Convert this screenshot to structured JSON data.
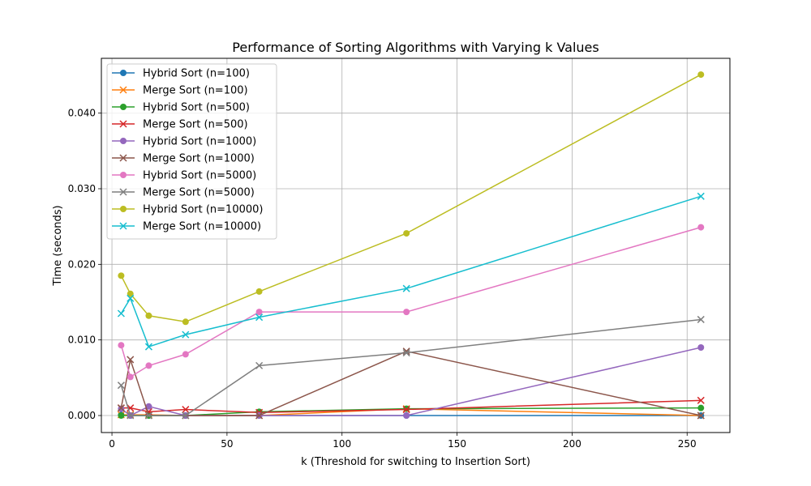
{
  "chart_data": {
    "type": "line",
    "title": "Performance of Sorting Algorithms with Varying k Values",
    "xlabel": "k (Threshold for switching to Insertion Sort)",
    "ylabel": "Time (seconds)",
    "x": [
      4,
      8,
      16,
      32,
      64,
      128,
      256
    ],
    "xlim": [
      -4.6,
      268.6
    ],
    "ylim": [
      -0.00225,
      0.04725
    ],
    "xticks": [
      0,
      50,
      100,
      150,
      200,
      250
    ],
    "yticks": [
      0.0,
      0.01,
      0.02,
      0.03,
      0.04
    ],
    "ytick_labels": [
      "0.000",
      "0.010",
      "0.020",
      "0.030",
      "0.040"
    ],
    "grid": true,
    "legend_position": "upper-left",
    "series": [
      {
        "name": "Hybrid Sort (n=100)",
        "color": "#1f77b4",
        "marker": "circle",
        "values": [
          0.0001,
          0.0,
          0.0,
          0.0,
          0.0,
          0.0,
          0.0
        ]
      },
      {
        "name": "Merge Sort (n=100)",
        "color": "#ff7f0e",
        "marker": "x",
        "values": [
          0.0001,
          0.0001,
          0.0001,
          0.0,
          0.0,
          0.0009,
          0.0
        ]
      },
      {
        "name": "Hybrid Sort (n=500)",
        "color": "#2ca02c",
        "marker": "circle",
        "values": [
          0.0,
          0.0,
          0.0,
          0.0,
          0.0005,
          0.0009,
          0.001
        ]
      },
      {
        "name": "Merge Sort (n=500)",
        "color": "#d62728",
        "marker": "x",
        "values": [
          0.001,
          0.001,
          0.0005,
          0.0008,
          0.0004,
          0.0008,
          0.002
        ]
      },
      {
        "name": "Hybrid Sort (n=1000)",
        "color": "#9467bd",
        "marker": "circle",
        "values": [
          0.0009,
          0.0,
          0.0012,
          0.0,
          0.0,
          0.0,
          0.009
        ]
      },
      {
        "name": "Merge Sort (n=1000)",
        "color": "#8c564b",
        "marker": "x",
        "values": [
          0.001,
          0.0074,
          0.0,
          0.0,
          0.0,
          0.0085,
          0.0
        ]
      },
      {
        "name": "Hybrid Sort (n=5000)",
        "color": "#e377c2",
        "marker": "circle",
        "values": [
          0.0093,
          0.0051,
          0.0066,
          0.0081,
          0.0137,
          0.0137,
          0.0249
        ]
      },
      {
        "name": "Merge Sort (n=5000)",
        "color": "#7f7f7f",
        "marker": "x",
        "values": [
          0.004,
          0.0,
          0.0,
          0.0,
          0.0066,
          0.0083,
          0.0127
        ]
      },
      {
        "name": "Hybrid Sort (n=10000)",
        "color": "#bcbd22",
        "marker": "circle",
        "values": [
          0.0185,
          0.0161,
          0.0132,
          0.0124,
          0.0164,
          0.0241,
          0.0451
        ]
      },
      {
        "name": "Merge Sort (n=10000)",
        "color": "#17becf",
        "marker": "x",
        "values": [
          0.0135,
          0.0155,
          0.0091,
          0.0107,
          0.013,
          0.0168,
          0.029
        ]
      }
    ]
  }
}
